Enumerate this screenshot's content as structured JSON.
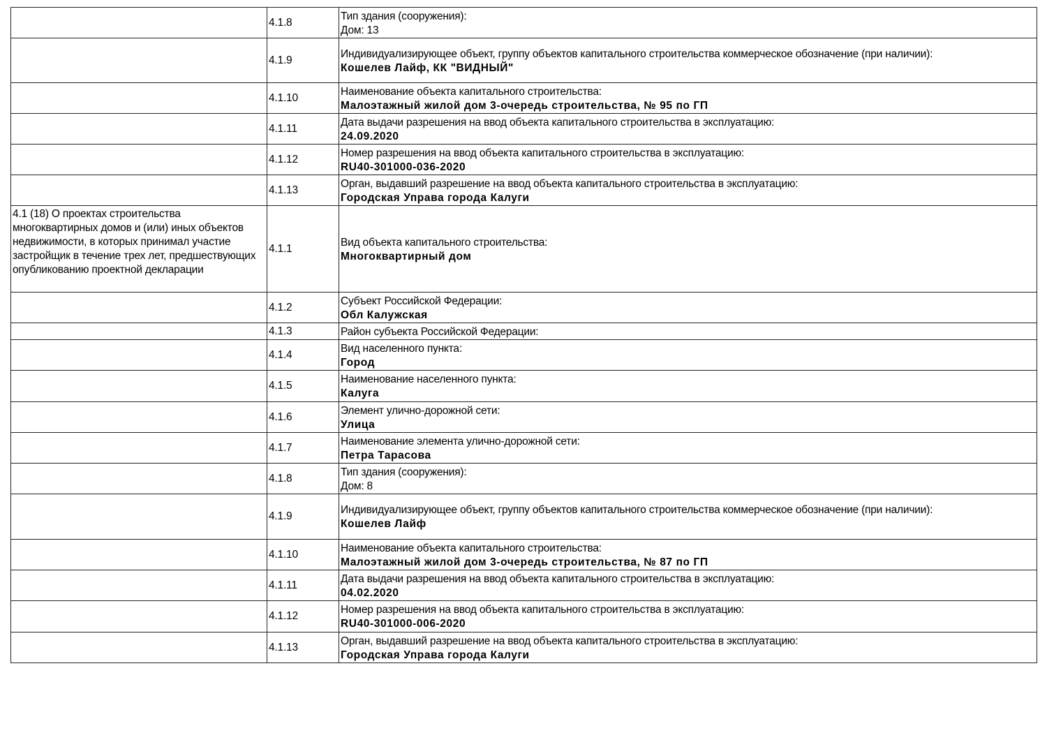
{
  "rows": [
    {
      "section": "",
      "code": "4.1.8",
      "label": "Тип здания (сооружения):",
      "value": "Дом: 13",
      "bold": false
    },
    {
      "section": "",
      "code": "4.1.9",
      "label": "Индивидуализирующее объект, группу объектов капитального строительства коммерческое обозначение (при наличии):",
      "value": "Кошелев Лайф, КК \"ВИДНЫЙ\"",
      "bold": true
    },
    {
      "section": "",
      "code": "4.1.10",
      "label": "Наименование объекта капитального строительства:",
      "value": "Малоэтажный жилой дом 3-очередь строительства, № 95 по ГП",
      "bold": true
    },
    {
      "section": "",
      "code": "4.1.11",
      "label": "Дата выдачи разрешения на ввод объекта капитального строительства в эксплуатацию:",
      "value": "24.09.2020",
      "bold": true
    },
    {
      "section": "",
      "code": "4.1.12",
      "label": "Номер разрешения на ввод объекта капитального строительства в эксплуатацию:",
      "value": "RU40-301000-036-2020",
      "bold": true
    },
    {
      "section": "",
      "code": "4.1.13",
      "label": "Орган, выдавший разрешение на ввод объекта капитального строительства в эксплуатацию:",
      "value": "Городская Управа города Калуги",
      "bold": true
    },
    {
      "section": "4.1 (18) О проектах строительства многоквартирных домов и (или) иных объектов недвижимости, в которых принимал участие застройщик в течение трех лет, предшествующих опубликованию проектной декларации",
      "code": "4.1.1",
      "label": "Вид объекта капитального строительства:",
      "value": "Многоквартирный дом",
      "bold": true
    },
    {
      "section": "",
      "code": "4.1.2",
      "label": "Субъект Российской Федерации:",
      "value": "Обл Калужская",
      "bold": true
    },
    {
      "section": "",
      "code": "4.1.3",
      "label": "Район субъекта Российской Федерации:",
      "value": "",
      "bold": true
    },
    {
      "section": "",
      "code": "4.1.4",
      "label": "Вид населенного пункта:",
      "value": "Город",
      "bold": true
    },
    {
      "section": "",
      "code": "4.1.5",
      "label": "Наименование населенного пункта:",
      "value": "Калуга",
      "bold": true
    },
    {
      "section": "",
      "code": "4.1.6",
      "label": "Элемент улично-дорожной сети:",
      "value": "Улица",
      "bold": true
    },
    {
      "section": "",
      "code": "4.1.7",
      "label": "Наименование элемента улично-дорожной сети:",
      "value": "Петра Тарасова",
      "bold": true
    },
    {
      "section": "",
      "code": "4.1.8",
      "label": "Тип здания (сооружения):",
      "value": "Дом: 8",
      "bold": false
    },
    {
      "section": "",
      "code": "4.1.9",
      "label": "Индивидуализирующее объект, группу объектов капитального строительства коммерческое обозначение (при наличии):",
      "value": "Кошелев Лайф",
      "bold": true
    },
    {
      "section": "",
      "code": "4.1.10",
      "label": "Наименование объекта капитального строительства:",
      "value": "Малоэтажный жилой дом 3-очередь строительства, № 87 по ГП",
      "bold": true
    },
    {
      "section": "",
      "code": "4.1.11",
      "label": "Дата выдачи разрешения на ввод объекта капитального строительства в эксплуатацию:",
      "value": "04.02.2020",
      "bold": true
    },
    {
      "section": "",
      "code": "4.1.12",
      "label": "Номер разрешения на ввод объекта капитального строительства в эксплуатацию:",
      "value": "RU40-301000-006-2020",
      "bold": true
    },
    {
      "section": "",
      "code": "4.1.13",
      "label": "Орган, выдавший разрешение на ввод объекта капитального строительства в эксплуатацию:",
      "value": "Городская Управа города Калуги",
      "bold": true
    }
  ]
}
